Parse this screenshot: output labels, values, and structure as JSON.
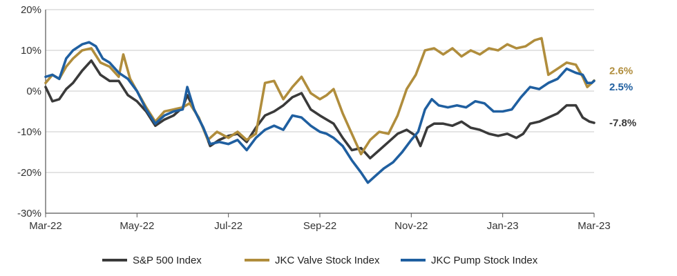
{
  "chart_data": {
    "type": "line",
    "title": "",
    "xlabel": "",
    "ylabel": "",
    "ylim": [
      -30,
      20
    ],
    "y_ticks": [
      20,
      10,
      0,
      -10,
      -20,
      -30
    ],
    "y_tick_labels": [
      "20%",
      "10%",
      "0%",
      "-10%",
      "-20%",
      "-30%"
    ],
    "x_tick_labels": [
      "Mar-22",
      "May-22",
      "Jul-22",
      "Sep-22",
      "Nov-22",
      "Jan-23",
      "Mar-23"
    ],
    "x_tick_months": [
      0,
      2,
      4,
      6,
      8,
      10,
      12
    ],
    "x_range_months": [
      0,
      12
    ],
    "grid": "horizontal",
    "legend_position": "bottom",
    "series": [
      {
        "name": "S&P 500 Index",
        "color": "#3a3a3a",
        "end_label": "-7.8%",
        "points": [
          [
            0.0,
            1.0
          ],
          [
            0.15,
            -2.5
          ],
          [
            0.3,
            -2.0
          ],
          [
            0.45,
            0.5
          ],
          [
            0.6,
            2.0
          ],
          [
            0.8,
            5.0
          ],
          [
            1.0,
            7.5
          ],
          [
            1.2,
            4.0
          ],
          [
            1.4,
            2.5
          ],
          [
            1.6,
            2.5
          ],
          [
            1.8,
            -1.0
          ],
          [
            2.0,
            -2.5
          ],
          [
            2.2,
            -5.0
          ],
          [
            2.4,
            -8.5
          ],
          [
            2.6,
            -7.0
          ],
          [
            2.8,
            -6.0
          ],
          [
            3.0,
            -4.0
          ],
          [
            3.1,
            -1.0
          ],
          [
            3.25,
            -4.5
          ],
          [
            3.45,
            -9.0
          ],
          [
            3.6,
            -13.5
          ],
          [
            3.8,
            -12.0
          ],
          [
            4.0,
            -11.0
          ],
          [
            4.2,
            -10.5
          ],
          [
            4.4,
            -12.5
          ],
          [
            4.6,
            -9.0
          ],
          [
            4.8,
            -6.0
          ],
          [
            5.0,
            -5.0
          ],
          [
            5.2,
            -3.5
          ],
          [
            5.4,
            -1.5
          ],
          [
            5.6,
            -0.5
          ],
          [
            5.8,
            -4.5
          ],
          [
            6.0,
            -6.0
          ],
          [
            6.15,
            -7.0
          ],
          [
            6.3,
            -8.0
          ],
          [
            6.5,
            -11.5
          ],
          [
            6.7,
            -14.5
          ],
          [
            6.9,
            -14.0
          ],
          [
            7.1,
            -16.5
          ],
          [
            7.3,
            -14.5
          ],
          [
            7.5,
            -12.5
          ],
          [
            7.7,
            -10.5
          ],
          [
            7.9,
            -9.5
          ],
          [
            8.1,
            -11.0
          ],
          [
            8.2,
            -13.5
          ],
          [
            8.35,
            -9.0
          ],
          [
            8.5,
            -8.0
          ],
          [
            8.7,
            -8.0
          ],
          [
            8.9,
            -8.5
          ],
          [
            9.1,
            -7.5
          ],
          [
            9.3,
            -9.0
          ],
          [
            9.5,
            -9.5
          ],
          [
            9.7,
            -10.5
          ],
          [
            9.9,
            -11.0
          ],
          [
            10.1,
            -10.5
          ],
          [
            10.3,
            -11.5
          ],
          [
            10.45,
            -10.5
          ],
          [
            10.6,
            -8.0
          ],
          [
            10.8,
            -7.5
          ],
          [
            11.0,
            -6.5
          ],
          [
            11.2,
            -5.5
          ],
          [
            11.4,
            -3.5
          ],
          [
            11.6,
            -3.5
          ],
          [
            11.75,
            -6.5
          ],
          [
            11.9,
            -7.5
          ],
          [
            12.0,
            -7.8
          ]
        ]
      },
      {
        "name": "JKC Valve Stock Index",
        "color": "#b08d3c",
        "end_label": "2.6%",
        "points": [
          [
            0.0,
            2.0
          ],
          [
            0.15,
            4.0
          ],
          [
            0.3,
            3.0
          ],
          [
            0.45,
            6.0
          ],
          [
            0.6,
            8.0
          ],
          [
            0.8,
            10.0
          ],
          [
            1.0,
            10.5
          ],
          [
            1.2,
            7.0
          ],
          [
            1.4,
            6.0
          ],
          [
            1.6,
            3.5
          ],
          [
            1.7,
            9.0
          ],
          [
            1.85,
            3.0
          ],
          [
            2.0,
            0.0
          ],
          [
            2.2,
            -4.0
          ],
          [
            2.4,
            -7.5
          ],
          [
            2.6,
            -5.0
          ],
          [
            2.8,
            -4.5
          ],
          [
            3.0,
            -4.0
          ],
          [
            3.15,
            -3.0
          ],
          [
            3.35,
            -6.5
          ],
          [
            3.55,
            -12.0
          ],
          [
            3.75,
            -10.0
          ],
          [
            4.0,
            -11.5
          ],
          [
            4.2,
            -10.0
          ],
          [
            4.4,
            -12.0
          ],
          [
            4.6,
            -10.5
          ],
          [
            4.8,
            2.0
          ],
          [
            5.0,
            2.5
          ],
          [
            5.2,
            -2.0
          ],
          [
            5.4,
            1.0
          ],
          [
            5.6,
            3.5
          ],
          [
            5.8,
            -0.5
          ],
          [
            6.0,
            -2.0
          ],
          [
            6.15,
            -1.0
          ],
          [
            6.3,
            0.5
          ],
          [
            6.5,
            -5.5
          ],
          [
            6.7,
            -10.5
          ],
          [
            6.9,
            -15.5
          ],
          [
            7.1,
            -12.0
          ],
          [
            7.3,
            -10.0
          ],
          [
            7.5,
            -10.5
          ],
          [
            7.7,
            -6.0
          ],
          [
            7.9,
            0.5
          ],
          [
            8.1,
            4.0
          ],
          [
            8.3,
            10.0
          ],
          [
            8.5,
            10.5
          ],
          [
            8.7,
            9.0
          ],
          [
            8.9,
            10.5
          ],
          [
            9.1,
            8.5
          ],
          [
            9.3,
            10.0
          ],
          [
            9.5,
            9.0
          ],
          [
            9.7,
            10.5
          ],
          [
            9.9,
            10.0
          ],
          [
            10.1,
            11.5
          ],
          [
            10.3,
            10.5
          ],
          [
            10.5,
            11.0
          ],
          [
            10.7,
            12.5
          ],
          [
            10.85,
            13.0
          ],
          [
            11.0,
            4.0
          ],
          [
            11.2,
            5.5
          ],
          [
            11.4,
            7.0
          ],
          [
            11.6,
            6.5
          ],
          [
            11.75,
            3.5
          ],
          [
            11.85,
            1.0
          ],
          [
            11.95,
            2.0
          ],
          [
            12.0,
            2.6
          ]
        ]
      },
      {
        "name": "JKC Pump Stock Index",
        "color": "#1f5fa0",
        "end_label": "2.5%",
        "points": [
          [
            0.0,
            3.5
          ],
          [
            0.15,
            4.0
          ],
          [
            0.3,
            3.0
          ],
          [
            0.45,
            8.0
          ],
          [
            0.6,
            10.0
          ],
          [
            0.8,
            11.5
          ],
          [
            0.95,
            12.0
          ],
          [
            1.1,
            11.0
          ],
          [
            1.25,
            8.0
          ],
          [
            1.4,
            7.0
          ],
          [
            1.6,
            4.5
          ],
          [
            1.8,
            3.0
          ],
          [
            2.0,
            0.0
          ],
          [
            2.2,
            -4.5
          ],
          [
            2.4,
            -8.0
          ],
          [
            2.6,
            -6.0
          ],
          [
            2.8,
            -5.0
          ],
          [
            3.0,
            -4.5
          ],
          [
            3.1,
            1.0
          ],
          [
            3.25,
            -4.5
          ],
          [
            3.45,
            -9.0
          ],
          [
            3.6,
            -13.0
          ],
          [
            3.8,
            -12.5
          ],
          [
            4.0,
            -13.0
          ],
          [
            4.2,
            -12.0
          ],
          [
            4.4,
            -14.5
          ],
          [
            4.6,
            -11.5
          ],
          [
            4.8,
            -9.5
          ],
          [
            5.0,
            -8.5
          ],
          [
            5.2,
            -9.5
          ],
          [
            5.4,
            -6.0
          ],
          [
            5.6,
            -6.5
          ],
          [
            5.8,
            -8.5
          ],
          [
            6.0,
            -10.0
          ],
          [
            6.15,
            -10.5
          ],
          [
            6.3,
            -11.5
          ],
          [
            6.5,
            -13.5
          ],
          [
            6.7,
            -17.0
          ],
          [
            6.9,
            -20.0
          ],
          [
            7.05,
            -22.5
          ],
          [
            7.2,
            -21.0
          ],
          [
            7.4,
            -19.0
          ],
          [
            7.6,
            -17.5
          ],
          [
            7.8,
            -15.0
          ],
          [
            8.0,
            -12.0
          ],
          [
            8.15,
            -10.0
          ],
          [
            8.3,
            -4.5
          ],
          [
            8.45,
            -2.0
          ],
          [
            8.6,
            -3.5
          ],
          [
            8.8,
            -4.0
          ],
          [
            9.0,
            -3.5
          ],
          [
            9.2,
            -4.0
          ],
          [
            9.4,
            -2.5
          ],
          [
            9.6,
            -3.0
          ],
          [
            9.8,
            -5.0
          ],
          [
            10.0,
            -5.0
          ],
          [
            10.2,
            -4.5
          ],
          [
            10.4,
            -1.5
          ],
          [
            10.6,
            1.0
          ],
          [
            10.8,
            0.5
          ],
          [
            11.0,
            2.0
          ],
          [
            11.2,
            3.0
          ],
          [
            11.4,
            5.5
          ],
          [
            11.6,
            4.5
          ],
          [
            11.75,
            4.0
          ],
          [
            11.85,
            2.0
          ],
          [
            11.95,
            2.0
          ],
          [
            12.0,
            2.5
          ]
        ]
      }
    ]
  }
}
